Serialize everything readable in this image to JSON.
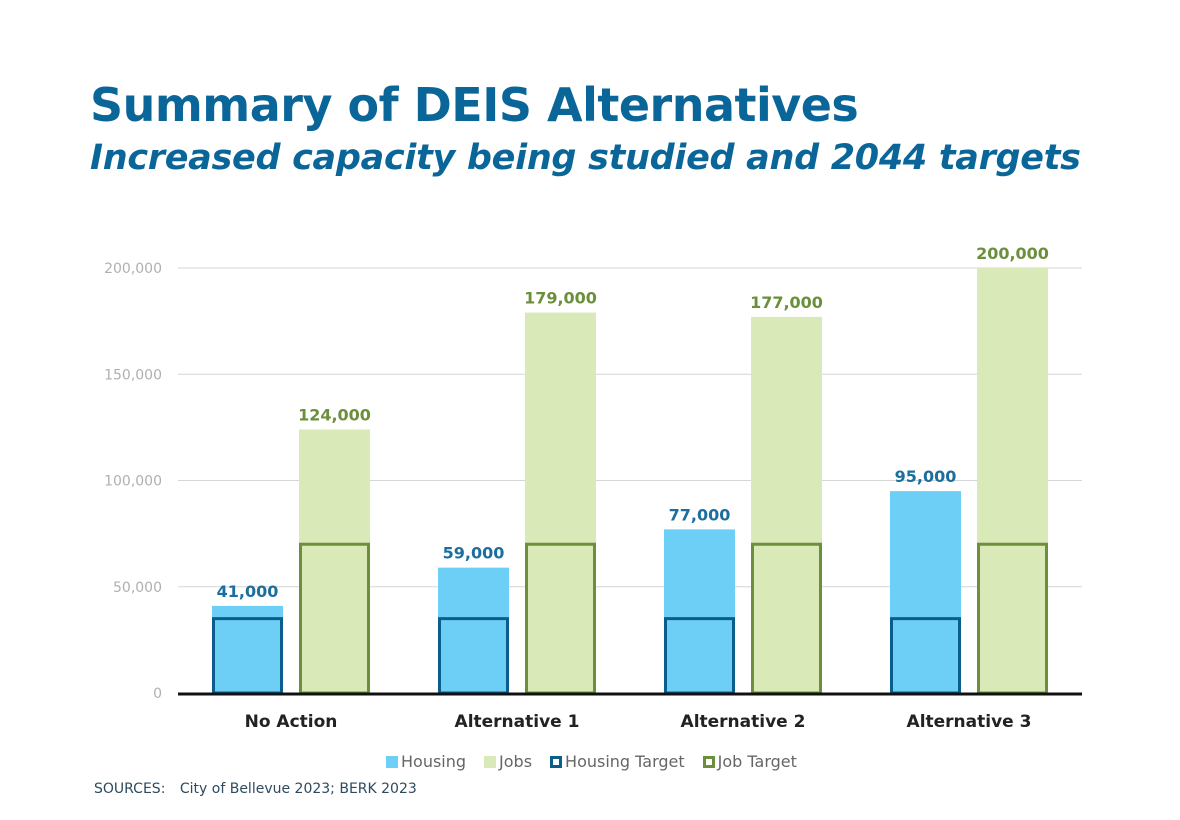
{
  "header": {
    "title": "Summary of DEIS Alternatives",
    "subtitle": "Increased capacity being studied and 2044 targets"
  },
  "colors": {
    "title": "#0a6699",
    "housing": "#6dcff6",
    "jobs": "#d9e9b8",
    "housing_target": "#0b5e8c",
    "job_target": "#6b8f3a",
    "housing_label": "#1b6e9e",
    "jobs_label": "#6b8f3a"
  },
  "chart_data": {
    "type": "bar",
    "title": "Summary of DEIS Alternatives",
    "subtitle": "Increased capacity being studied and 2044 targets",
    "xlabel": "",
    "ylabel": "",
    "categories": [
      "No Action",
      "Alternative 1",
      "Alternative 2",
      "Alternative 3"
    ],
    "series": [
      {
        "name": "Housing",
        "values": [
          41000,
          59000,
          77000,
          95000
        ],
        "labels": [
          "41,000",
          "59,000",
          "77,000",
          "95,000"
        ]
      },
      {
        "name": "Jobs",
        "values": [
          124000,
          179000,
          177000,
          200000
        ],
        "labels": [
          "124,000",
          "179,000",
          "177,000",
          "200,000"
        ]
      },
      {
        "name": "Housing Target",
        "values": [
          35000,
          35000,
          35000,
          35000
        ]
      },
      {
        "name": "Job Target",
        "values": [
          70000,
          70000,
          70000,
          70000
        ]
      }
    ],
    "ylim": [
      0,
      200000
    ],
    "yticks": [
      0,
      50000,
      100000,
      150000,
      200000
    ],
    "ytick_labels": [
      "0",
      "50,000",
      "100,000",
      "150,000",
      "200,000"
    ],
    "grid": true,
    "legend_position": "bottom"
  },
  "legend": [
    {
      "label": "Housing",
      "style": "fill",
      "color": "#6dcff6"
    },
    {
      "label": "Jobs",
      "style": "fill",
      "color": "#d9e9b8"
    },
    {
      "label": "Housing Target",
      "style": "outline",
      "color": "#0b5e8c"
    },
    {
      "label": "Job Target",
      "style": "outline",
      "color": "#6b8f3a"
    }
  ],
  "sources": {
    "key": "SOURCES:",
    "text": "City of Bellevue 2023; BERK 2023"
  }
}
